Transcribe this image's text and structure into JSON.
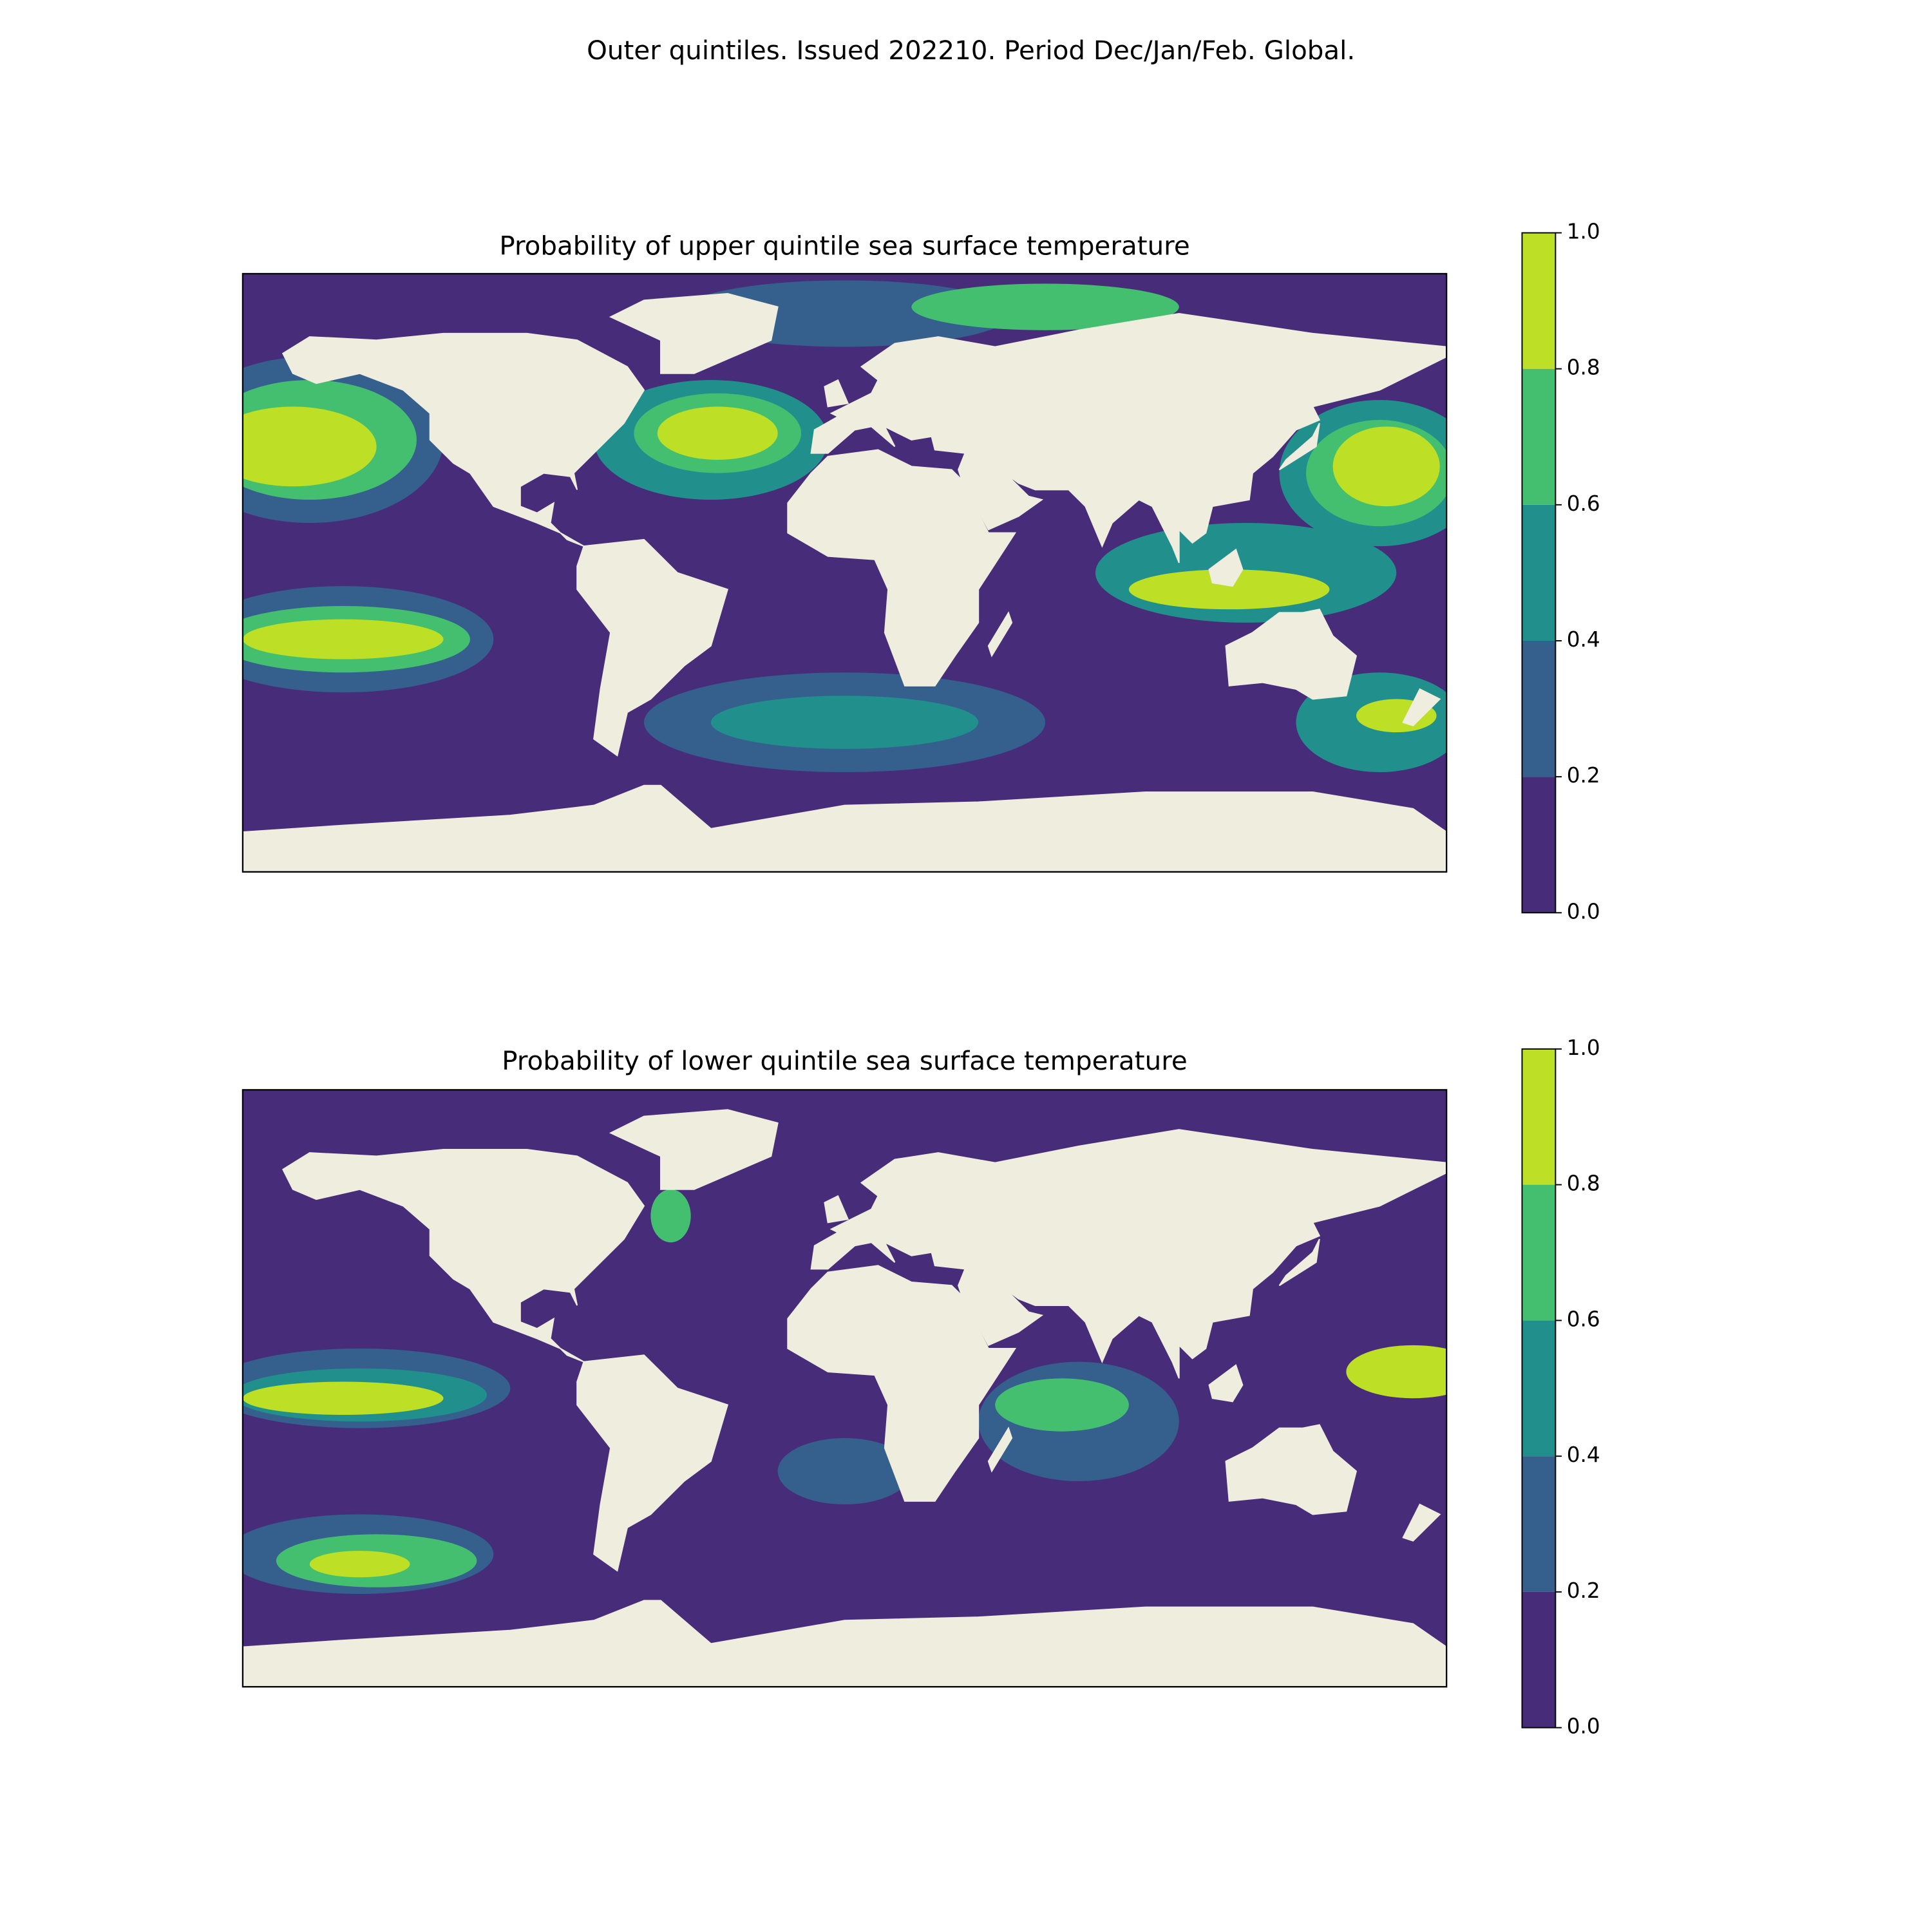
{
  "suptitle": "Outer quintiles. Issued 202210. Period Dec/Jan/Feb. Global.",
  "chart_data": [
    {
      "type": "contour-map",
      "title": "Probability of upper quintile sea surface temperature",
      "colorbar": {
        "ticks": [
          {
            "value": 0,
            "label": "0.0"
          },
          0.2,
          0.4,
          0.6,
          0.8,
          {
            "value": 1,
            "label": "1.0"
          }
        ],
        "colors": [
          "#472c7a",
          "#355f8d",
          "#21908d",
          "#44bf70",
          "#bddf26"
        ]
      }
    },
    {
      "type": "contour-map",
      "title": "Probability of lower quintile sea surface temperature",
      "colorbar": {
        "ticks": [
          {
            "value": 0,
            "label": "0.0"
          },
          0.2,
          0.4,
          0.6,
          0.8,
          {
            "value": 1,
            "label": "1.0"
          }
        ],
        "colors": [
          "#472c7a",
          "#355f8d",
          "#21908d",
          "#44bf70",
          "#bddf26"
        ]
      }
    }
  ]
}
